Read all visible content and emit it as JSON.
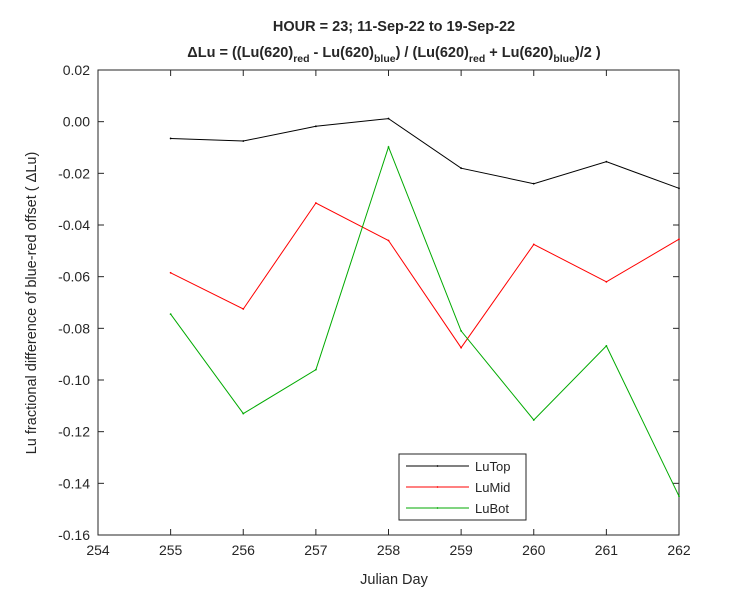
{
  "chart_data": {
    "type": "line",
    "title_line1": "HOUR = 23; 11-Sep-22 to 19-Sep-22",
    "title_line2": {
      "prefix": "ΔLu = ((Lu(620)",
      "sub_red_1": "red",
      "mid_1": " - Lu(620)",
      "sub_blue_1": "blue",
      "mid_2": ") / (Lu(620)",
      "sub_red_2": "red",
      "mid_3": " + Lu(620)",
      "sub_blue_2": "blue",
      "suffix": ")/2  )"
    },
    "xlabel": "Julian Day",
    "ylabel": "Lu fractional difference of blue-red offset (  ΔLu)",
    "xlim": [
      254,
      262
    ],
    "ylim": [
      -0.16,
      0.02
    ],
    "xticks": [
      "254",
      "255",
      "256",
      "257",
      "258",
      "259",
      "260",
      "261",
      "262"
    ],
    "yticks": [
      "0.02",
      "0.00",
      "-0.02",
      "-0.04",
      "-0.06",
      "-0.08",
      "-0.10",
      "-0.12",
      "-0.14",
      "-0.16"
    ],
    "x": [
      255,
      256,
      257,
      258,
      259,
      260,
      261,
      262
    ],
    "series": [
      {
        "name": "LuTop",
        "color": "#000000",
        "values": [
          -0.0065,
          -0.0075,
          -0.0018,
          0.0012,
          -0.018,
          -0.024,
          -0.0155,
          -0.0258
        ]
      },
      {
        "name": "LuMid",
        "color": "#ff0000",
        "values": [
          -0.0585,
          -0.0725,
          -0.0315,
          -0.046,
          -0.0875,
          -0.0475,
          -0.062,
          -0.0455
        ]
      },
      {
        "name": "LuBot",
        "color": "#00aa00",
        "values": [
          -0.0745,
          -0.113,
          -0.096,
          -0.0098,
          -0.081,
          -0.1155,
          -0.0868,
          -0.145
        ]
      }
    ],
    "legend_location": "bottom-center",
    "grid": false
  }
}
